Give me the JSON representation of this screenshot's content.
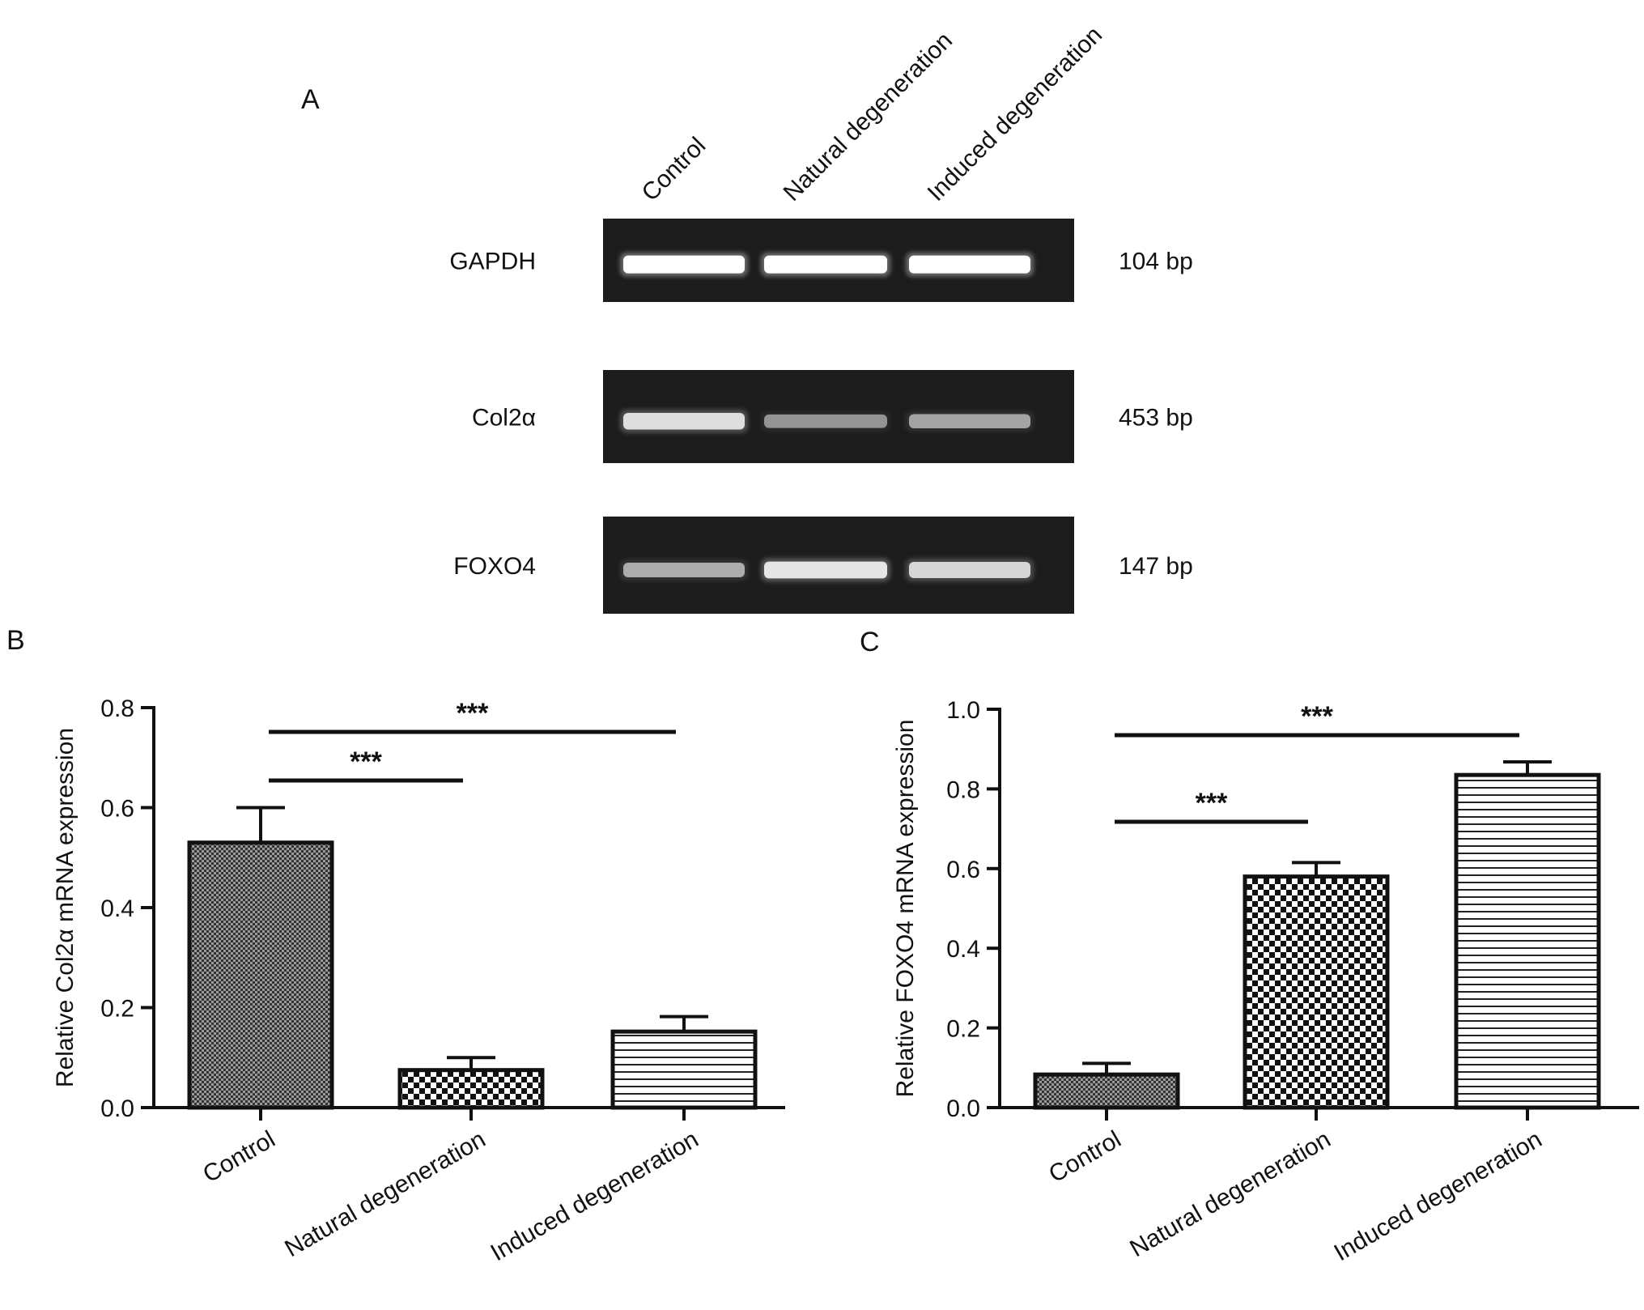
{
  "panel_a": {
    "letter": "A",
    "lanes": [
      "Control",
      "Natural degeneration",
      "Induced degeneration"
    ],
    "rows": [
      {
        "gene": "GAPDH",
        "size": "104 bp",
        "intensity": [
          1.0,
          1.0,
          1.0
        ]
      },
      {
        "gene": "Col2α",
        "size": "453 bp",
        "intensity": [
          0.8,
          0.35,
          0.45
        ]
      },
      {
        "gene": "FOXO4",
        "size": "147 bp",
        "intensity": [
          0.5,
          0.85,
          0.75
        ]
      }
    ]
  },
  "chart_data": [
    {
      "letter": "B",
      "type": "bar",
      "categories": [
        "Control",
        "Natural degeneration",
        "Induced degeneration"
      ],
      "values": [
        0.53,
        0.075,
        0.152
      ],
      "errors": [
        0.07,
        0.025,
        0.03
      ],
      "patterns": [
        "fine-check",
        "checker",
        "horizontal-lines"
      ],
      "ylabel": "Relative Col2α mRNA expression",
      "ylim": [
        0,
        0.8
      ],
      "yticks": [
        "0.0",
        "0.2",
        "0.4",
        "0.6",
        "0.8"
      ],
      "significance": [
        {
          "from": 0,
          "to": 1,
          "label": "***"
        },
        {
          "from": 0,
          "to": 2,
          "label": "***"
        }
      ]
    },
    {
      "letter": "C",
      "type": "bar",
      "categories": [
        "Control",
        "Natural degeneration",
        "Induced degeneration"
      ],
      "values": [
        0.083,
        0.58,
        0.835
      ],
      "errors": [
        0.028,
        0.035,
        0.033
      ],
      "patterns": [
        "fine-check",
        "checker",
        "horizontal-lines"
      ],
      "ylabel": "Relative FOXO4 mRNA expression",
      "ylim": [
        0,
        1.0
      ],
      "yticks": [
        "0.0",
        "0.2",
        "0.4",
        "0.6",
        "0.8",
        "1.0"
      ],
      "significance": [
        {
          "from": 0,
          "to": 1,
          "label": "***"
        },
        {
          "from": 0,
          "to": 2,
          "label": "***"
        }
      ]
    }
  ]
}
